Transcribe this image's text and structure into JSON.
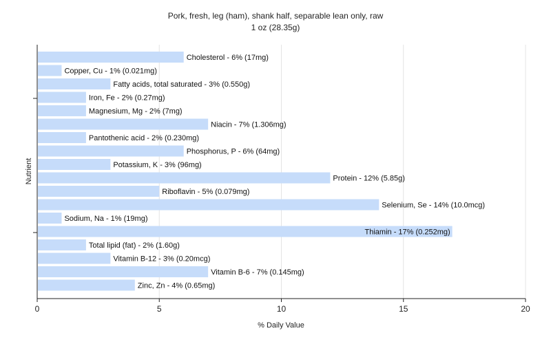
{
  "chart_data": {
    "type": "bar",
    "orientation": "horizontal",
    "title": "Pork, fresh, leg (ham), shank half, separable lean only, raw",
    "subtitle": "1 oz (28.35g)",
    "xlabel": "% Daily Value",
    "ylabel": "Nutrient",
    "xlim": [
      0,
      20
    ],
    "xticks": [
      0,
      5,
      10,
      15,
      20
    ],
    "grid": true,
    "bar_color": "#c6dcfa",
    "categories": [
      "Cholesterol",
      "Copper, Cu",
      "Fatty acids, total saturated",
      "Iron, Fe",
      "Magnesium, Mg",
      "Niacin",
      "Pantothenic acid",
      "Phosphorus, P",
      "Potassium, K",
      "Protein",
      "Riboflavin",
      "Selenium, Se",
      "Sodium, Na",
      "Thiamin",
      "Total lipid (fat)",
      "Vitamin B-12",
      "Vitamin B-6",
      "Zinc, Zn"
    ],
    "values": [
      6,
      1,
      3,
      2,
      2,
      7,
      2,
      6,
      3,
      12,
      5,
      14,
      1,
      17,
      2,
      3,
      7,
      4
    ],
    "labels": [
      "Cholesterol - 6% (17mg)",
      "Copper, Cu - 1% (0.021mg)",
      "Fatty acids, total saturated - 3% (0.550g)",
      "Iron, Fe - 2% (0.27mg)",
      "Magnesium, Mg - 2% (7mg)",
      "Niacin - 7% (1.306mg)",
      "Pantothenic acid - 2% (0.230mg)",
      "Phosphorus, P - 6% (64mg)",
      "Potassium, K - 3% (96mg)",
      "Protein - 12% (5.85g)",
      "Riboflavin - 5% (0.079mg)",
      "Selenium, Se - 14% (10.0mcg)",
      "Sodium, Na - 1% (19mg)",
      "Thiamin - 17% (0.252mg)",
      "Total lipid (fat) - 2% (1.60g)",
      "Vitamin B-12 - 3% (0.20mcg)",
      "Vitamin B-6 - 7% (0.145mg)",
      "Zinc, Zn - 4% (0.65mg)"
    ]
  }
}
